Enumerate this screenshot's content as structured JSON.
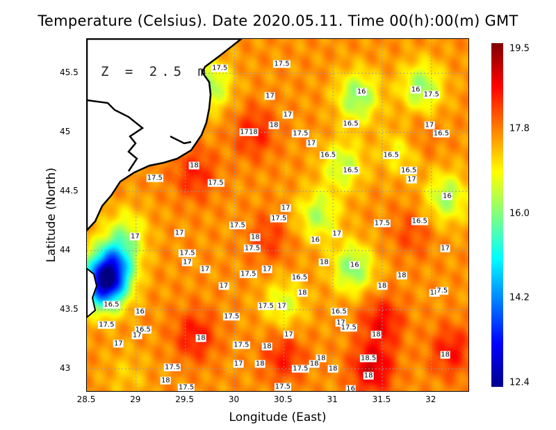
{
  "title": "Temperature (Celsius). Date 2020.05.11. Time 00(h):00(m)  GMT",
  "depth_label": "Z = 2.5 m",
  "chart_data": {
    "type": "heatmap",
    "title": "Temperature (Celsius). Date 2020.05.11. Time 00(h):00(m)  GMT",
    "xlabel": "Longitude (East)",
    "ylabel": "Latitude (North)",
    "xlim": [
      28.5,
      32.39
    ],
    "ylim": [
      42.8,
      45.79
    ],
    "xticks": [
      "28.5",
      "29",
      "29.5",
      "30",
      "30.5",
      "31",
      "31.5",
      "32"
    ],
    "xtick_values": [
      28.5,
      29,
      29.5,
      30,
      30.5,
      31,
      31.5,
      32
    ],
    "yticks": [
      "43",
      "43.5",
      "44",
      "44.5",
      "45",
      "45.5"
    ],
    "ytick_values": [
      43,
      43.5,
      44,
      44.5,
      45,
      45.5
    ],
    "grid": true,
    "colorbar": {
      "min": 12.4,
      "max": 19.5,
      "ticks": [
        "19.5",
        "17.8",
        "16.0",
        "14.2",
        "12.4"
      ],
      "tick_values": [
        19.5,
        17.8,
        16.0,
        14.2,
        12.4
      ]
    },
    "field_base": 17.6,
    "field_samples": [
      {
        "lon": 28.68,
        "lat": 43.72,
        "value": 13.2
      },
      {
        "lon": 28.78,
        "lat": 43.9,
        "value": 15.2
      },
      {
        "lon": 28.9,
        "lat": 44.15,
        "value": 16.6
      },
      {
        "lon": 29.75,
        "lat": 45.4,
        "value": 16.2
      },
      {
        "lon": 31.25,
        "lat": 45.3,
        "value": 16.0
      },
      {
        "lon": 31.9,
        "lat": 45.38,
        "value": 16.1
      },
      {
        "lon": 31.1,
        "lat": 44.72,
        "value": 16.4
      },
      {
        "lon": 30.85,
        "lat": 44.3,
        "value": 16.3
      },
      {
        "lon": 31.2,
        "lat": 43.85,
        "value": 16.0
      },
      {
        "lon": 32.15,
        "lat": 44.45,
        "value": 16.2
      },
      {
        "lon": 31.7,
        "lat": 44.85,
        "value": 16.7
      },
      {
        "lon": 30.5,
        "lat": 43.55,
        "value": 16.6
      },
      {
        "lon": 30.2,
        "lat": 45.0,
        "value": 18.4
      },
      {
        "lon": 29.6,
        "lat": 44.65,
        "value": 18.4
      },
      {
        "lon": 31.5,
        "lat": 43.4,
        "value": 18.6
      },
      {
        "lon": 31.4,
        "lat": 43.0,
        "value": 18.9
      },
      {
        "lon": 30.5,
        "lat": 43.1,
        "value": 18.4
      },
      {
        "lon": 29.6,
        "lat": 43.28,
        "value": 18.5
      },
      {
        "lon": 31.85,
        "lat": 44.95,
        "value": 18.1
      },
      {
        "lon": 31.8,
        "lat": 44.15,
        "value": 18.1
      },
      {
        "lon": 30.35,
        "lat": 44.1,
        "value": 18.2
      },
      {
        "lon": 28.9,
        "lat": 42.95,
        "value": 17.2
      },
      {
        "lon": 32.2,
        "lat": 43.15,
        "value": 18.5
      }
    ],
    "contour_labels": [
      {
        "text": "17.5",
        "lon": 29.85,
        "lat": 45.54
      },
      {
        "text": "17.5",
        "lon": 30.48,
        "lat": 45.58
      },
      {
        "text": "17",
        "lon": 30.36,
        "lat": 45.31
      },
      {
        "text": "16",
        "lon": 31.29,
        "lat": 45.34
      },
      {
        "text": "16",
        "lon": 31.84,
        "lat": 45.36
      },
      {
        "text": "17.5",
        "lon": 32.0,
        "lat": 45.32
      },
      {
        "text": "17",
        "lon": 30.54,
        "lat": 45.15
      },
      {
        "text": "18",
        "lon": 30.4,
        "lat": 45.06
      },
      {
        "text": "16.5",
        "lon": 31.18,
        "lat": 45.07
      },
      {
        "text": "17",
        "lon": 31.98,
        "lat": 45.06
      },
      {
        "text": "16.5",
        "lon": 32.1,
        "lat": 44.99
      },
      {
        "text": "17",
        "lon": 30.1,
        "lat": 45.0
      },
      {
        "text": "18",
        "lon": 30.19,
        "lat": 45.0
      },
      {
        "text": "17.5",
        "lon": 30.67,
        "lat": 44.99
      },
      {
        "text": "17",
        "lon": 30.78,
        "lat": 44.91
      },
      {
        "text": "16.5",
        "lon": 30.95,
        "lat": 44.81
      },
      {
        "text": "16.5",
        "lon": 31.59,
        "lat": 44.81
      },
      {
        "text": "18",
        "lon": 29.59,
        "lat": 44.72
      },
      {
        "text": "16.5",
        "lon": 31.18,
        "lat": 44.68
      },
      {
        "text": "16.5",
        "lon": 31.77,
        "lat": 44.68
      },
      {
        "text": "17",
        "lon": 31.8,
        "lat": 44.6
      },
      {
        "text": "17.5",
        "lon": 29.19,
        "lat": 44.61
      },
      {
        "text": "17.5",
        "lon": 29.81,
        "lat": 44.57
      },
      {
        "text": "16",
        "lon": 32.16,
        "lat": 44.46
      },
      {
        "text": "17",
        "lon": 30.52,
        "lat": 44.36
      },
      {
        "text": "17.5",
        "lon": 30.45,
        "lat": 44.27
      },
      {
        "text": "17.5",
        "lon": 30.03,
        "lat": 44.21
      },
      {
        "text": "17.5",
        "lon": 31.5,
        "lat": 44.23
      },
      {
        "text": "16.5",
        "lon": 31.88,
        "lat": 44.25
      },
      {
        "text": "17",
        "lon": 28.99,
        "lat": 44.12
      },
      {
        "text": "17",
        "lon": 29.44,
        "lat": 44.15
      },
      {
        "text": "18",
        "lon": 30.21,
        "lat": 44.11
      },
      {
        "text": "16",
        "lon": 30.82,
        "lat": 44.09
      },
      {
        "text": "17",
        "lon": 31.04,
        "lat": 44.14
      },
      {
        "text": "17.5",
        "lon": 30.18,
        "lat": 44.02
      },
      {
        "text": "17",
        "lon": 32.14,
        "lat": 44.02
      },
      {
        "text": "17.5",
        "lon": 29.52,
        "lat": 43.98
      },
      {
        "text": "17",
        "lon": 29.52,
        "lat": 43.9
      },
      {
        "text": "18",
        "lon": 30.91,
        "lat": 43.9
      },
      {
        "text": "16",
        "lon": 31.22,
        "lat": 43.88
      },
      {
        "text": "17",
        "lon": 29.7,
        "lat": 43.84
      },
      {
        "text": "17",
        "lon": 30.33,
        "lat": 43.84
      },
      {
        "text": "17.5",
        "lon": 30.14,
        "lat": 43.8
      },
      {
        "text": "16.5",
        "lon": 30.66,
        "lat": 43.77
      },
      {
        "text": "18",
        "lon": 31.7,
        "lat": 43.79
      },
      {
        "text": "17",
        "lon": 29.89,
        "lat": 43.7
      },
      {
        "text": "18",
        "lon": 31.5,
        "lat": 43.7
      },
      {
        "text": "18",
        "lon": 30.69,
        "lat": 43.64
      },
      {
        "text": "18",
        "lon": 32.03,
        "lat": 43.64
      },
      {
        "text": "7.5",
        "lon": 32.11,
        "lat": 43.66
      },
      {
        "text": "16.5",
        "lon": 28.75,
        "lat": 43.54
      },
      {
        "text": "17.5",
        "lon": 30.32,
        "lat": 43.53
      },
      {
        "text": "17",
        "lon": 30.48,
        "lat": 43.53
      },
      {
        "text": "16",
        "lon": 29.04,
        "lat": 43.48
      },
      {
        "text": "16.5",
        "lon": 31.06,
        "lat": 43.48
      },
      {
        "text": "17.5",
        "lon": 29.97,
        "lat": 43.44
      },
      {
        "text": "17",
        "lon": 31.08,
        "lat": 43.39
      },
      {
        "text": "17.5",
        "lon": 28.7,
        "lat": 43.37
      },
      {
        "text": "17.5",
        "lon": 31.16,
        "lat": 43.35
      },
      {
        "text": "16.5",
        "lon": 29.07,
        "lat": 43.33
      },
      {
        "text": "17",
        "lon": 29.01,
        "lat": 43.28
      },
      {
        "text": "17",
        "lon": 30.55,
        "lat": 43.29
      },
      {
        "text": "18",
        "lon": 29.66,
        "lat": 43.26
      },
      {
        "text": "18",
        "lon": 31.44,
        "lat": 43.29
      },
      {
        "text": "17",
        "lon": 28.82,
        "lat": 43.21
      },
      {
        "text": "17.5",
        "lon": 30.07,
        "lat": 43.2
      },
      {
        "text": "18",
        "lon": 30.33,
        "lat": 43.19
      },
      {
        "text": "18",
        "lon": 32.14,
        "lat": 43.12
      },
      {
        "text": "18",
        "lon": 30.88,
        "lat": 43.09
      },
      {
        "text": "18.5",
        "lon": 31.36,
        "lat": 43.09
      },
      {
        "text": "17",
        "lon": 30.04,
        "lat": 43.04
      },
      {
        "text": "18",
        "lon": 30.26,
        "lat": 43.04
      },
      {
        "text": "18",
        "lon": 30.81,
        "lat": 43.04
      },
      {
        "text": "17.5",
        "lon": 29.37,
        "lat": 43.01
      },
      {
        "text": "17.5",
        "lon": 30.67,
        "lat": 43.0
      },
      {
        "text": "18",
        "lon": 31.0,
        "lat": 43.0
      },
      {
        "text": "18",
        "lon": 31.36,
        "lat": 42.94
      },
      {
        "text": "18",
        "lon": 29.3,
        "lat": 42.9
      },
      {
        "text": "17.5",
        "lon": 29.51,
        "lat": 42.84
      },
      {
        "text": "17.5",
        "lon": 30.49,
        "lat": 42.85
      },
      {
        "text": "16",
        "lon": 31.18,
        "lat": 42.83
      }
    ]
  }
}
